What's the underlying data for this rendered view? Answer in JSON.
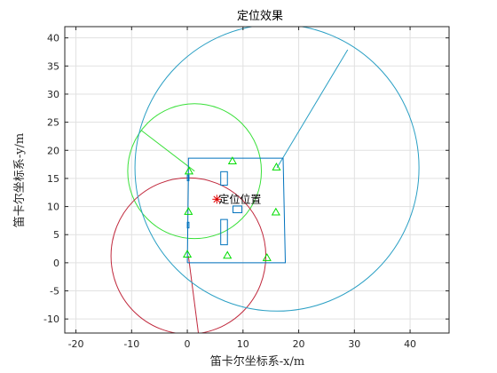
{
  "chart_data": {
    "type": "scatter",
    "title": "定位效果",
    "xlabel": "笛卡尔坐标系-x/m",
    "ylabel": "笛卡尔坐标系-y/m",
    "xlim": [
      -22,
      47
    ],
    "ylim": [
      -12.5,
      42
    ],
    "xticks": [
      -20,
      -10,
      0,
      10,
      20,
      30,
      40
    ],
    "yticks": [
      -10,
      -5,
      0,
      5,
      10,
      15,
      20,
      25,
      30,
      35,
      40
    ],
    "grid": true,
    "colors": {
      "room": "#0072BD",
      "anchors": "#00DD00",
      "green_circle": "#3AE03A",
      "red_circle": "#C0283C",
      "cyan_circle": "#2A9FC4",
      "estimate": "#E00000",
      "grid": "#E1E1E1",
      "axis": "#262626"
    },
    "room": {
      "outline": [
        [
          0,
          0
        ],
        [
          17.6,
          0
        ],
        [
          17.2,
          18.6
        ],
        [
          0.2,
          18.6
        ],
        [
          0.2,
          15.5
        ]
      ],
      "obstacles": [
        {
          "x": 6.0,
          "y": 13.8,
          "w": 1.2,
          "h": 2.4
        },
        {
          "x": 6.0,
          "y": 3.2,
          "w": 1.2,
          "h": 4.5
        },
        {
          "x": 8.2,
          "y": 8.9,
          "w": 1.6,
          "h": 1.2
        },
        {
          "x": 0.0,
          "y": 14.6,
          "w": 0.3,
          "h": 1.0
        },
        {
          "x": 0.0,
          "y": 6.2,
          "w": 0.3,
          "h": 1.0
        }
      ]
    },
    "anchors": [
      {
        "x": 0.3,
        "y": 16.3
      },
      {
        "x": 8.1,
        "y": 18.1
      },
      {
        "x": 16.0,
        "y": 17.0
      },
      {
        "x": 0.2,
        "y": 9.1
      },
      {
        "x": 15.9,
        "y": 9.0
      },
      {
        "x": 0.0,
        "y": 1.5
      },
      {
        "x": 7.2,
        "y": 1.3
      },
      {
        "x": 14.3,
        "y": 0.9
      }
    ],
    "range_circles": [
      {
        "name": "green",
        "cx": 1.3,
        "cy": 16.3,
        "r": 12.0,
        "radius_line_to": [
          -8.2,
          23.5
        ]
      },
      {
        "name": "red",
        "cx": 0.2,
        "cy": 1.2,
        "r": 13.9,
        "radius_line_to": [
          2.0,
          -12.6
        ]
      },
      {
        "name": "cyan",
        "cx": 16.1,
        "cy": 16.9,
        "r": 25.5,
        "radius_line_to": [
          28.8,
          37.9
        ]
      }
    ],
    "estimate": {
      "x": 5.3,
      "y": 11.3,
      "label": "定位位置"
    }
  }
}
